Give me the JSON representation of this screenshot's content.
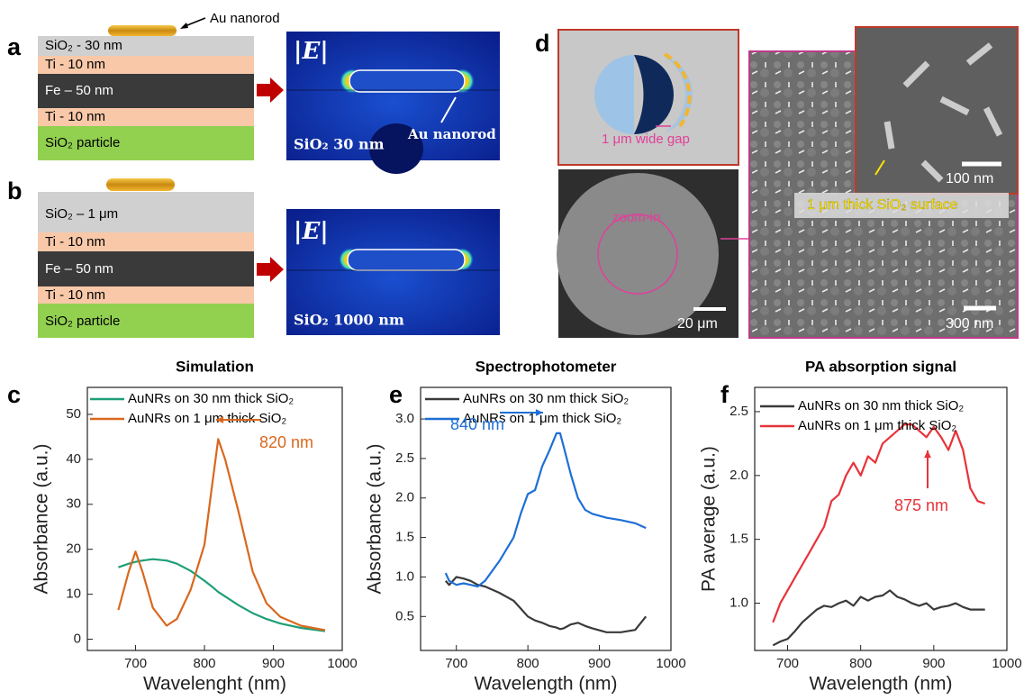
{
  "panels": {
    "a": {
      "label": "a",
      "nanorod_label": "Au nanorod",
      "layers": [
        "SiO₂ - 30 nm",
        "Ti - 10 nm",
        "Fe – 50 nm",
        "Ti - 10 nm",
        "SiO₂ particle"
      ],
      "field_symbol": "|E|",
      "field_rod_label": "Au nanorod",
      "field_caption": "SiO₂ 30 nm"
    },
    "b": {
      "label": "b",
      "layers": [
        "SiO₂ – 1 μm",
        "Ti - 10 nm",
        "Fe – 50 nm",
        "Ti - 10 nm",
        "SiO₂ particle"
      ],
      "field_symbol": "|E|",
      "field_caption": "SiO₂ 1000 nm"
    },
    "d": {
      "label": "d",
      "gap_label": "1 μm wide gap",
      "zoom_label": "zoom-in",
      "scale_sphere": "20 μm",
      "scale_inset": "100 nm",
      "surface_label": "1 μm thick SiO₂ surface",
      "scale_surface": "300 nm"
    }
  },
  "chart_data": [
    {
      "type": "line",
      "label": "c",
      "title": "Simulation",
      "x_label": "Wavelenght (nm)",
      "y_label": "Absorbance (a.u.)",
      "x": [
        675,
        690,
        700,
        710,
        725,
        745,
        760,
        780,
        800,
        810,
        820,
        830,
        850,
        870,
        890,
        910,
        940,
        975
      ],
      "series": [
        {
          "name": "AuNRs on 30 nm thick SiO₂",
          "color": "#1f9e78",
          "values": [
            16,
            16.8,
            17.2,
            17.5,
            17.8,
            17.5,
            16.8,
            15.2,
            13,
            11.8,
            10.5,
            9.5,
            7.5,
            5.8,
            4.5,
            3.5,
            2.5,
            1.8
          ]
        },
        {
          "name": "AuNRs on 1 μm thick SiO₂",
          "color": "#d9681e",
          "values": [
            6.5,
            15,
            19.5,
            15,
            7,
            3,
            4.5,
            11,
            21,
            33,
            44.5,
            40,
            28,
            15,
            8,
            5,
            3,
            2
          ]
        }
      ],
      "annotations": [
        "820 nm"
      ],
      "xlim": [
        630,
        1000
      ],
      "xticks": [
        700,
        800,
        900,
        1000
      ],
      "ylim": [
        -2.5,
        56
      ],
      "yticks": [
        0,
        10,
        20,
        30,
        40,
        50
      ]
    },
    {
      "type": "line",
      "label": "e",
      "title": "Spectrophotometer",
      "x_label": "Wavelength (nm)",
      "y_label": "Absorbance (a.u.)",
      "x": [
        685,
        690,
        700,
        710,
        720,
        730,
        740,
        760,
        780,
        790,
        800,
        810,
        820,
        830,
        840,
        845,
        850,
        860,
        870,
        880,
        890,
        910,
        930,
        950,
        965
      ],
      "series": [
        {
          "name": "AuNRs on 30 nm thick SiO₂",
          "color": "#3a3a3a",
          "values": [
            0.95,
            0.9,
            1.0,
            0.98,
            0.95,
            0.9,
            0.88,
            0.8,
            0.7,
            0.6,
            0.5,
            0.45,
            0.42,
            0.38,
            0.36,
            0.34,
            0.35,
            0.4,
            0.42,
            0.38,
            0.35,
            0.3,
            0.3,
            0.33,
            0.5
          ]
        },
        {
          "name": "AuNRs on 1 μm thick SiO₂",
          "color": "#1e6fd6",
          "values": [
            1.05,
            0.95,
            0.9,
            0.92,
            0.9,
            0.88,
            0.95,
            1.2,
            1.5,
            1.8,
            2.05,
            2.1,
            2.4,
            2.6,
            2.82,
            2.82,
            2.65,
            2.3,
            2.0,
            1.85,
            1.8,
            1.75,
            1.72,
            1.68,
            1.62
          ]
        }
      ],
      "annotations": [
        "840 nm"
      ],
      "xlim": [
        650,
        1000
      ],
      "xticks": [
        700,
        800,
        900,
        1000
      ],
      "ylim": [
        0.07,
        3.4
      ],
      "yticks": [
        0.5,
        {
          "value": 1,
          "label": "1.0"
        },
        1.5,
        {
          "value": 2,
          "label": "2.0"
        },
        2.5,
        {
          "value": 3,
          "label": "3.0"
        }
      ]
    },
    {
      "type": "line",
      "label": "f",
      "title": "PA absorption signal",
      "x_label": "Wavelength (nm)",
      "y_label": "PA average (a.u.)",
      "x": [
        680,
        690,
        700,
        710,
        720,
        730,
        740,
        750,
        760,
        770,
        780,
        790,
        800,
        810,
        820,
        830,
        840,
        850,
        860,
        870,
        880,
        890,
        900,
        910,
        920,
        930,
        940,
        950,
        960,
        970
      ],
      "series": [
        {
          "name": "AuNRs on 30 nm thick SiO₂",
          "color": "#3a3a3a",
          "values": [
            0.67,
            0.7,
            0.72,
            0.78,
            0.85,
            0.9,
            0.95,
            0.98,
            0.97,
            1.0,
            1.02,
            0.98,
            1.05,
            1.02,
            1.05,
            1.06,
            1.1,
            1.05,
            1.03,
            1.0,
            0.98,
            1.0,
            0.95,
            0.97,
            0.98,
            1.0,
            0.97,
            0.95,
            0.95,
            0.95
          ]
        },
        {
          "name": "AuNRs on 1 μm thick SiO₂",
          "color": "#e8333a",
          "values": [
            0.85,
            1.0,
            1.1,
            1.2,
            1.3,
            1.4,
            1.5,
            1.6,
            1.8,
            1.85,
            2.0,
            2.1,
            2.0,
            2.15,
            2.1,
            2.25,
            2.3,
            2.35,
            2.4,
            2.4,
            2.35,
            2.3,
            2.38,
            2.3,
            2.2,
            2.35,
            2.2,
            1.9,
            1.8,
            1.78
          ]
        }
      ],
      "annotations": [
        "875 nm"
      ],
      "xlim": [
        655,
        1000
      ],
      "xticks": [
        700,
        800,
        900,
        1000
      ],
      "ylim": [
        0.63,
        2.69
      ],
      "yticks": [
        {
          "value": 1,
          "label": "1.0"
        },
        1.5,
        {
          "value": 2,
          "label": "2.0"
        },
        2.5
      ]
    }
  ]
}
